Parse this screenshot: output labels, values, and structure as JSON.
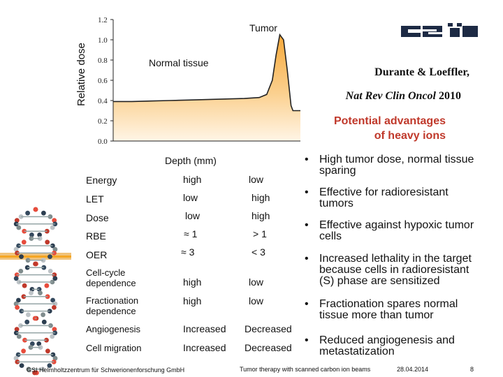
{
  "chart_data": {
    "type": "line",
    "ylabel": "Relative dose",
    "xlabel": "Depth (mm)",
    "ylim": [
      0.0,
      1.2
    ],
    "yticks": [
      "1.2",
      "1.0",
      "0.8",
      "0.6",
      "0.4",
      "0.2",
      "0.0"
    ],
    "annotations": [
      "Tumor",
      "Normal tissue"
    ],
    "series": [
      {
        "name": "Relative dose",
        "points": [
          [
            0,
            0.39
          ],
          [
            10,
            0.39
          ],
          [
            20,
            0.395
          ],
          [
            30,
            0.4
          ],
          [
            40,
            0.405
          ],
          [
            50,
            0.41
          ],
          [
            60,
            0.415
          ],
          [
            70,
            0.42
          ],
          [
            78,
            0.43
          ],
          [
            82,
            0.46
          ],
          [
            85,
            0.6
          ],
          [
            87,
            0.85
          ],
          [
            89,
            1.05
          ],
          [
            91,
            1.0
          ],
          [
            93,
            0.7
          ],
          [
            95,
            0.35
          ],
          [
            96,
            0.3
          ],
          [
            100,
            0.3
          ]
        ]
      }
    ]
  },
  "reference": {
    "line1": "Durante & Loeffler,",
    "journal": "Nat Rev Clin Oncol",
    "year": "2010"
  },
  "advantages_title": {
    "line1": "Potential advantages",
    "line2": "of heavy ions"
  },
  "table": {
    "rows": [
      {
        "label": "Energy",
        "v1": "high",
        "v2": "low"
      },
      {
        "label": "LET",
        "v1": "low",
        "v2": "high"
      },
      {
        "label": "Dose",
        "v1": "low",
        "v2": "high"
      },
      {
        "label": "RBE",
        "v1": "≈ 1",
        "v2": "> 1"
      },
      {
        "label": "OER",
        "v1": "≈ 3",
        "v2": "< 3"
      },
      {
        "label": "Cell-cycle dependence",
        "label1": "Cell-cycle",
        "label2": "dependence",
        "v1": "high",
        "v2": "low"
      },
      {
        "label": "Fractionation dependence",
        "label1": "Fractionation",
        "label2": "dependence",
        "v1": "high",
        "v2": "low"
      },
      {
        "label": "Angiogenesis",
        "v1": "Increased",
        "v2": "Decreased"
      },
      {
        "label": "Cell migration",
        "v1": "Increased",
        "v2": "Decreased"
      }
    ]
  },
  "bullets": [
    {
      "line1": "High tumor dose, normal tissue",
      "line2": "sparing"
    },
    {
      "line1": "Effective for radioresistant",
      "line2": "tumors"
    },
    {
      "line1": "Effective against hypoxic tumor",
      "line2": "cells"
    },
    {
      "line1": "Increased lethality in the target",
      "line2": "because cells in radioresistant",
      "line3": "(S) phase are sensitized"
    },
    {
      "line1": "Fractionation spares normal",
      "line2": "tissue more than tumor"
    },
    {
      "line1": "Reduced angiogenesis and",
      "line2": "metastatization"
    }
  ],
  "bullet_glyph": "•",
  "footer": {
    "org": "GSI Helmholtzzentrum für Schwerionenforschung GmbH",
    "topic": "Tumor therapy with scanned carbon ion beams",
    "date": "28.04.2014",
    "page": "8"
  },
  "colors": {
    "fill_top": "#f7b049",
    "fill_bottom": "#fff3dd",
    "advantages": "#c0392b"
  }
}
